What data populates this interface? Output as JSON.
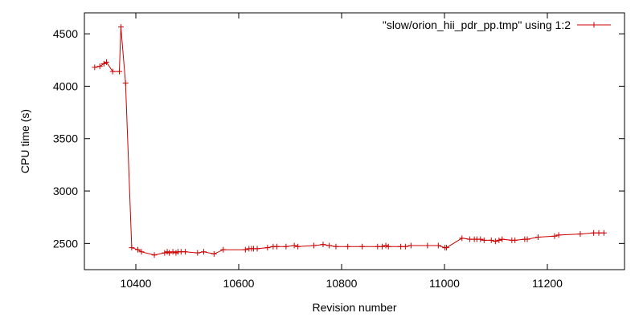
{
  "chart_data": {
    "type": "line",
    "title": "",
    "xlabel": "Revision number",
    "ylabel": "CPU time (s)",
    "xlim": [
      10300,
      11350
    ],
    "ylim": [
      2250,
      4700
    ],
    "xticks": [
      10400,
      10600,
      10800,
      11000,
      11200
    ],
    "yticks": [
      2500,
      3000,
      3500,
      4000,
      4500
    ],
    "grid": false,
    "legend_position": "top-right",
    "series": [
      {
        "name": "\"slow/orion_hii_pdr_pp.tmp\" using 1:2",
        "color": "#cc0000",
        "marker": "plus",
        "x": [
          10320,
          10330,
          10338,
          10343,
          10355,
          10368,
          10371,
          10380,
          10392,
          10404,
          10411,
          10436,
          10456,
          10461,
          10465,
          10472,
          10478,
          10482,
          10488,
          10496,
          10520,
          10532,
          10552,
          10570,
          10613,
          10620,
          10625,
          10629,
          10636,
          10656,
          10667,
          10674,
          10692,
          10708,
          10715,
          10746,
          10764,
          10776,
          10789,
          10812,
          10840,
          10870,
          10879,
          10886,
          10891,
          10915,
          10924,
          10935,
          10967,
          10988,
          11001,
          11004,
          11034,
          11049,
          11058,
          11063,
          11070,
          11077,
          11091,
          11099,
          11106,
          11112,
          11131,
          11137,
          11156,
          11161,
          11182,
          11214,
          11222,
          11264,
          11290,
          11300,
          11310
        ],
        "y": [
          4180,
          4190,
          4215,
          4230,
          4140,
          4140,
          4565,
          4030,
          2460,
          2440,
          2420,
          2390,
          2410,
          2420,
          2410,
          2420,
          2410,
          2420,
          2420,
          2420,
          2410,
          2420,
          2400,
          2440,
          2440,
          2450,
          2450,
          2450,
          2450,
          2460,
          2470,
          2470,
          2470,
          2480,
          2470,
          2480,
          2490,
          2480,
          2470,
          2470,
          2470,
          2470,
          2470,
          2480,
          2470,
          2470,
          2470,
          2480,
          2480,
          2480,
          2460,
          2460,
          2550,
          2540,
          2540,
          2540,
          2540,
          2530,
          2530,
          2520,
          2530,
          2540,
          2530,
          2530,
          2540,
          2540,
          2560,
          2570,
          2580,
          2590,
          2600,
          2600,
          2600
        ]
      }
    ]
  }
}
